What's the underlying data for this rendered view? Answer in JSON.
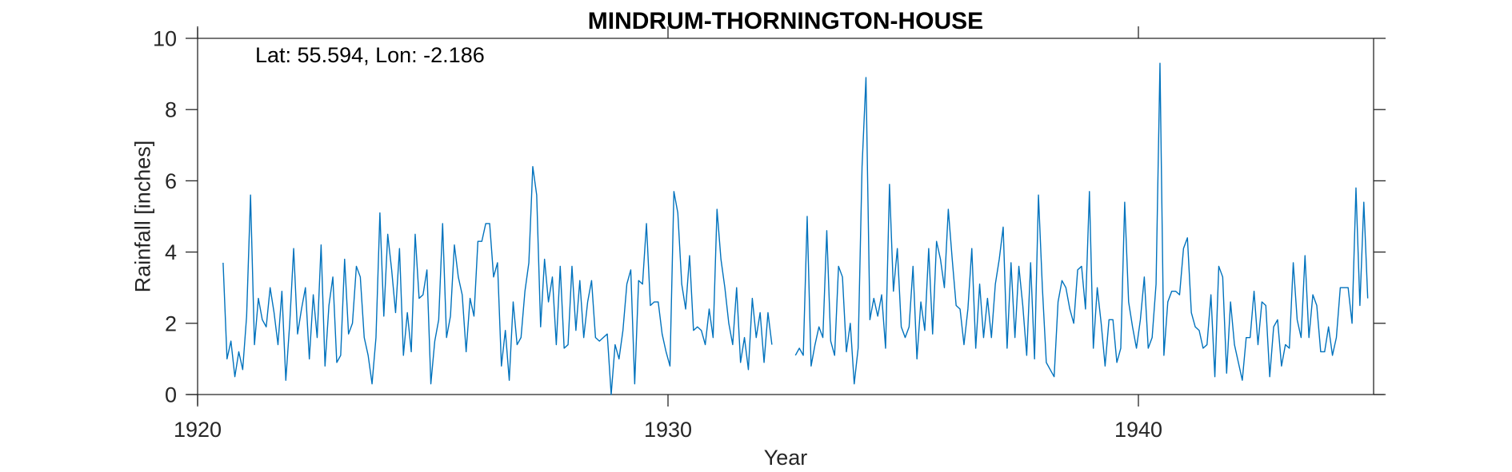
{
  "chart_data": {
    "type": "line",
    "title": "MINDRUM-THORNINGTON-HOUSE",
    "xlabel": "Year",
    "ylabel": "Rainfall [inches]",
    "annotation": "Lat: 55.594, Lon: -2.186",
    "xlim": [
      1920,
      1945
    ],
    "ylim": [
      0,
      10
    ],
    "xticks": [
      1920,
      1930,
      1940
    ],
    "yticks": [
      0,
      2,
      4,
      6,
      8,
      10
    ],
    "grid": false,
    "series_color": "#0072BD",
    "series": [
      {
        "x_start": 1920.542,
        "step": 0.0833333,
        "values": [
          3.7,
          1.0,
          1.5,
          0.5,
          1.2,
          0.7,
          2.2,
          5.6,
          1.4,
          2.7,
          2.1,
          1.9,
          3.0,
          2.3,
          1.4,
          2.9,
          0.4,
          2.0,
          4.1,
          1.7,
          2.4,
          3.0,
          1.0,
          2.8,
          1.6,
          4.2,
          0.8,
          2.5,
          3.3,
          0.9,
          1.1,
          3.8,
          1.7,
          2.0,
          3.6,
          3.3,
          1.6,
          1.1,
          0.3,
          1.6,
          5.1,
          2.2,
          4.5,
          3.5,
          2.3,
          4.1,
          1.1,
          2.3,
          1.2,
          4.5,
          2.7,
          2.8,
          3.5,
          0.3,
          1.5,
          2.1,
          4.8,
          1.6,
          2.2,
          4.2,
          3.3,
          2.8,
          1.2,
          2.7,
          2.2,
          4.3,
          4.3,
          4.8,
          4.8,
          3.3,
          3.7,
          0.8,
          1.8,
          0.4,
          2.6,
          1.4,
          1.6,
          2.9,
          3.7,
          6.4,
          5.6,
          1.9,
          3.8,
          2.6,
          3.3,
          1.4,
          3.6,
          1.3,
          1.4,
          3.6,
          1.8,
          3.2,
          1.6,
          2.6,
          3.2,
          1.6,
          1.5,
          1.6,
          1.7,
          0.0,
          1.4,
          1.0,
          1.8,
          3.1,
          3.5,
          0.3,
          3.2,
          3.1,
          4.8,
          2.5,
          2.6,
          2.6,
          1.7,
          1.2,
          0.8,
          5.7,
          5.1,
          3.1,
          2.4,
          3.9,
          1.8,
          1.9,
          1.8,
          1.4,
          2.4,
          1.6,
          5.2,
          3.8,
          3.0,
          2.0,
          1.4,
          3.0,
          0.9,
          1.6,
          0.7,
          2.7,
          1.6,
          2.3,
          0.9,
          2.3,
          1.4,
          null,
          null,
          null,
          null,
          null,
          1.1,
          1.3,
          1.1,
          5.0,
          0.8,
          1.4,
          1.9,
          1.6,
          4.6,
          1.5,
          1.1,
          3.6,
          3.3,
          1.2,
          2.0,
          0.3,
          1.3,
          6.4,
          8.9,
          2.1,
          2.7,
          2.2,
          2.8,
          1.3,
          5.9,
          2.9,
          4.1,
          1.9,
          1.6,
          1.9,
          3.6,
          1.0,
          2.6,
          1.8,
          4.1,
          1.7,
          4.3,
          3.8,
          3.0,
          5.2,
          3.8,
          2.5,
          2.4,
          1.4,
          2.4,
          4.1,
          1.3,
          3.1,
          1.6,
          2.7,
          1.6,
          3.1,
          3.8,
          4.7,
          1.3,
          3.7,
          1.6,
          3.6,
          2.5,
          1.1,
          3.7,
          1.0,
          5.6,
          3.0,
          0.9,
          0.7,
          0.5,
          2.6,
          3.2,
          3.0,
          2.4,
          2.0,
          3.5,
          3.6,
          2.4,
          5.7,
          1.3,
          3.0,
          2.0,
          0.8,
          2.1,
          2.1,
          0.9,
          1.3,
          5.4,
          2.6,
          1.9,
          1.3,
          2.1,
          3.3,
          1.3,
          1.6,
          3.1,
          9.3,
          1.1,
          2.6,
          2.9,
          2.9,
          2.8,
          4.1,
          4.4,
          2.3,
          1.9,
          1.8,
          1.3,
          1.4,
          2.8,
          0.5,
          3.6,
          3.3,
          0.6,
          2.6,
          1.4,
          0.9,
          0.4,
          1.6,
          1.6,
          2.9,
          1.4,
          2.6,
          2.5,
          0.5,
          1.9,
          2.1,
          0.8,
          1.4,
          1.3,
          3.7,
          2.1,
          1.6,
          3.9,
          1.6,
          2.8,
          2.5,
          1.2,
          1.2,
          1.9,
          1.1,
          1.6,
          3.0,
          3.0,
          3.0,
          2.0,
          5.8,
          2.5,
          5.4,
          2.7
        ]
      }
    ]
  }
}
